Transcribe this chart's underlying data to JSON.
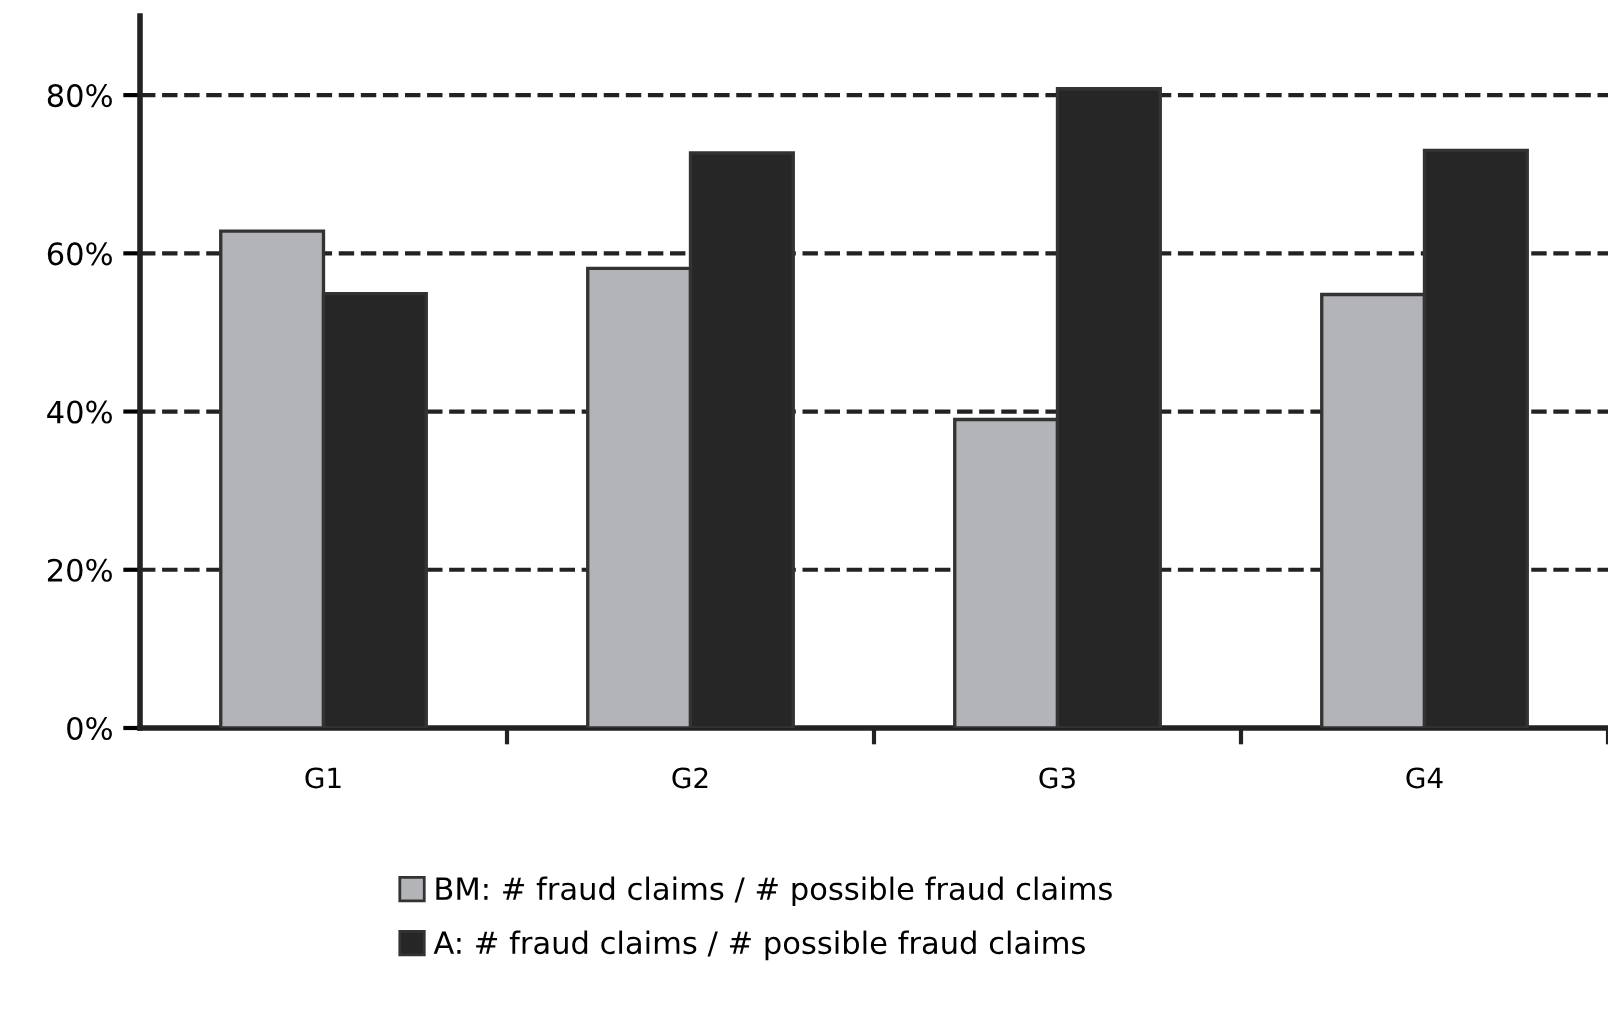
{
  "chart_data": {
    "type": "bar",
    "categories": [
      "G1",
      "G2",
      "G3",
      "G4"
    ],
    "series": [
      {
        "name": "BM: # fraud claims / # possible fraud claims",
        "color": "#b3b4b8",
        "values": [
          62.8,
          58.1,
          39.0,
          54.8
        ]
      },
      {
        "name": "A: # fraud claims / # possible fraud claims",
        "color": "#262626",
        "values": [
          54.9,
          72.7,
          80.8,
          73.0
        ]
      }
    ],
    "ylim": [
      0,
      90
    ],
    "yticks": [
      {
        "value": 0,
        "label": "0%"
      },
      {
        "value": 20,
        "label": "20%"
      },
      {
        "value": 40,
        "label": "40%"
      },
      {
        "value": 60,
        "label": "60%"
      },
      {
        "value": 80,
        "label": "80%"
      }
    ],
    "grid": "y",
    "line_style": "dashed",
    "legend": "bottom"
  }
}
